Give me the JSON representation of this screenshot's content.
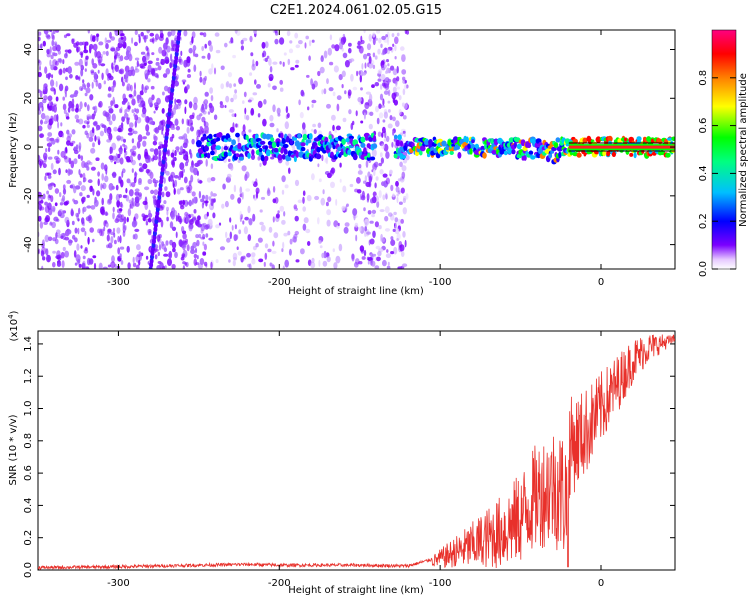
{
  "figure_title": "C2E1.2024.061.02.05.G15",
  "chart_data": [
    {
      "type": "heatmap",
      "xlabel": "Height of straight line (km)",
      "ylabel": "Frequency (Hz)",
      "xlim": [
        -350,
        46
      ],
      "ylim": [
        -50,
        48
      ],
      "x_ticks": [
        -300,
        -200,
        -100,
        0
      ],
      "y_ticks": [
        -40,
        -20,
        0,
        20,
        40
      ],
      "colorbar": {
        "label": "Normalized spectral amplitude",
        "range": [
          0.0,
          1.0
        ],
        "ticks": [
          0.0,
          0.2,
          0.4,
          0.6,
          0.8
        ],
        "colormap": [
          "#ffffff",
          "#7b00ff",
          "#0000ff",
          "#00bfff",
          "#00ff00",
          "#ffff00",
          "#ff8000",
          "#ff0000",
          "#ff0080"
        ]
      },
      "features": {
        "carrier_band": {
          "x_start": -250,
          "x_end": 46,
          "frequency": 0
        },
        "diagonal_streak": {
          "x": [
            -280,
            -262
          ],
          "frequency": [
            -50,
            48
          ]
        },
        "noise_region": {
          "x_start": -350,
          "x_end": -120
        }
      }
    },
    {
      "type": "line",
      "xlabel": "Height of straight line (km)",
      "ylabel": "SNR (10 * v/v)",
      "y_multiplier": "(x10",
      "y_multiplier_exp": "4",
      "y_multiplier_close": ")",
      "xlim": [
        -350,
        46
      ],
      "ylim": [
        0.0,
        1.48
      ],
      "x_ticks": [
        -300,
        -200,
        -100,
        0
      ],
      "y_ticks": [
        "0.0",
        "0.2",
        "0.4",
        "0.6",
        "0.8",
        "1.0",
        "1.2",
        "1.4"
      ],
      "color": "#e8302a",
      "series": [
        {
          "x": [
            -350,
            -300,
            -250,
            -220,
            -200,
            -150,
            -120,
            -100,
            -80,
            -60,
            -50,
            -40,
            -30,
            -25,
            -21,
            -20,
            -10,
            0,
            10,
            20,
            30,
            46
          ],
          "y": [
            0.015,
            0.02,
            0.03,
            0.035,
            0.03,
            0.03,
            0.025,
            0.08,
            0.15,
            0.25,
            0.35,
            0.55,
            0.62,
            0.55,
            0.45,
            0.75,
            0.85,
            1.0,
            1.15,
            1.3,
            1.38,
            1.43
          ]
        }
      ]
    }
  ]
}
